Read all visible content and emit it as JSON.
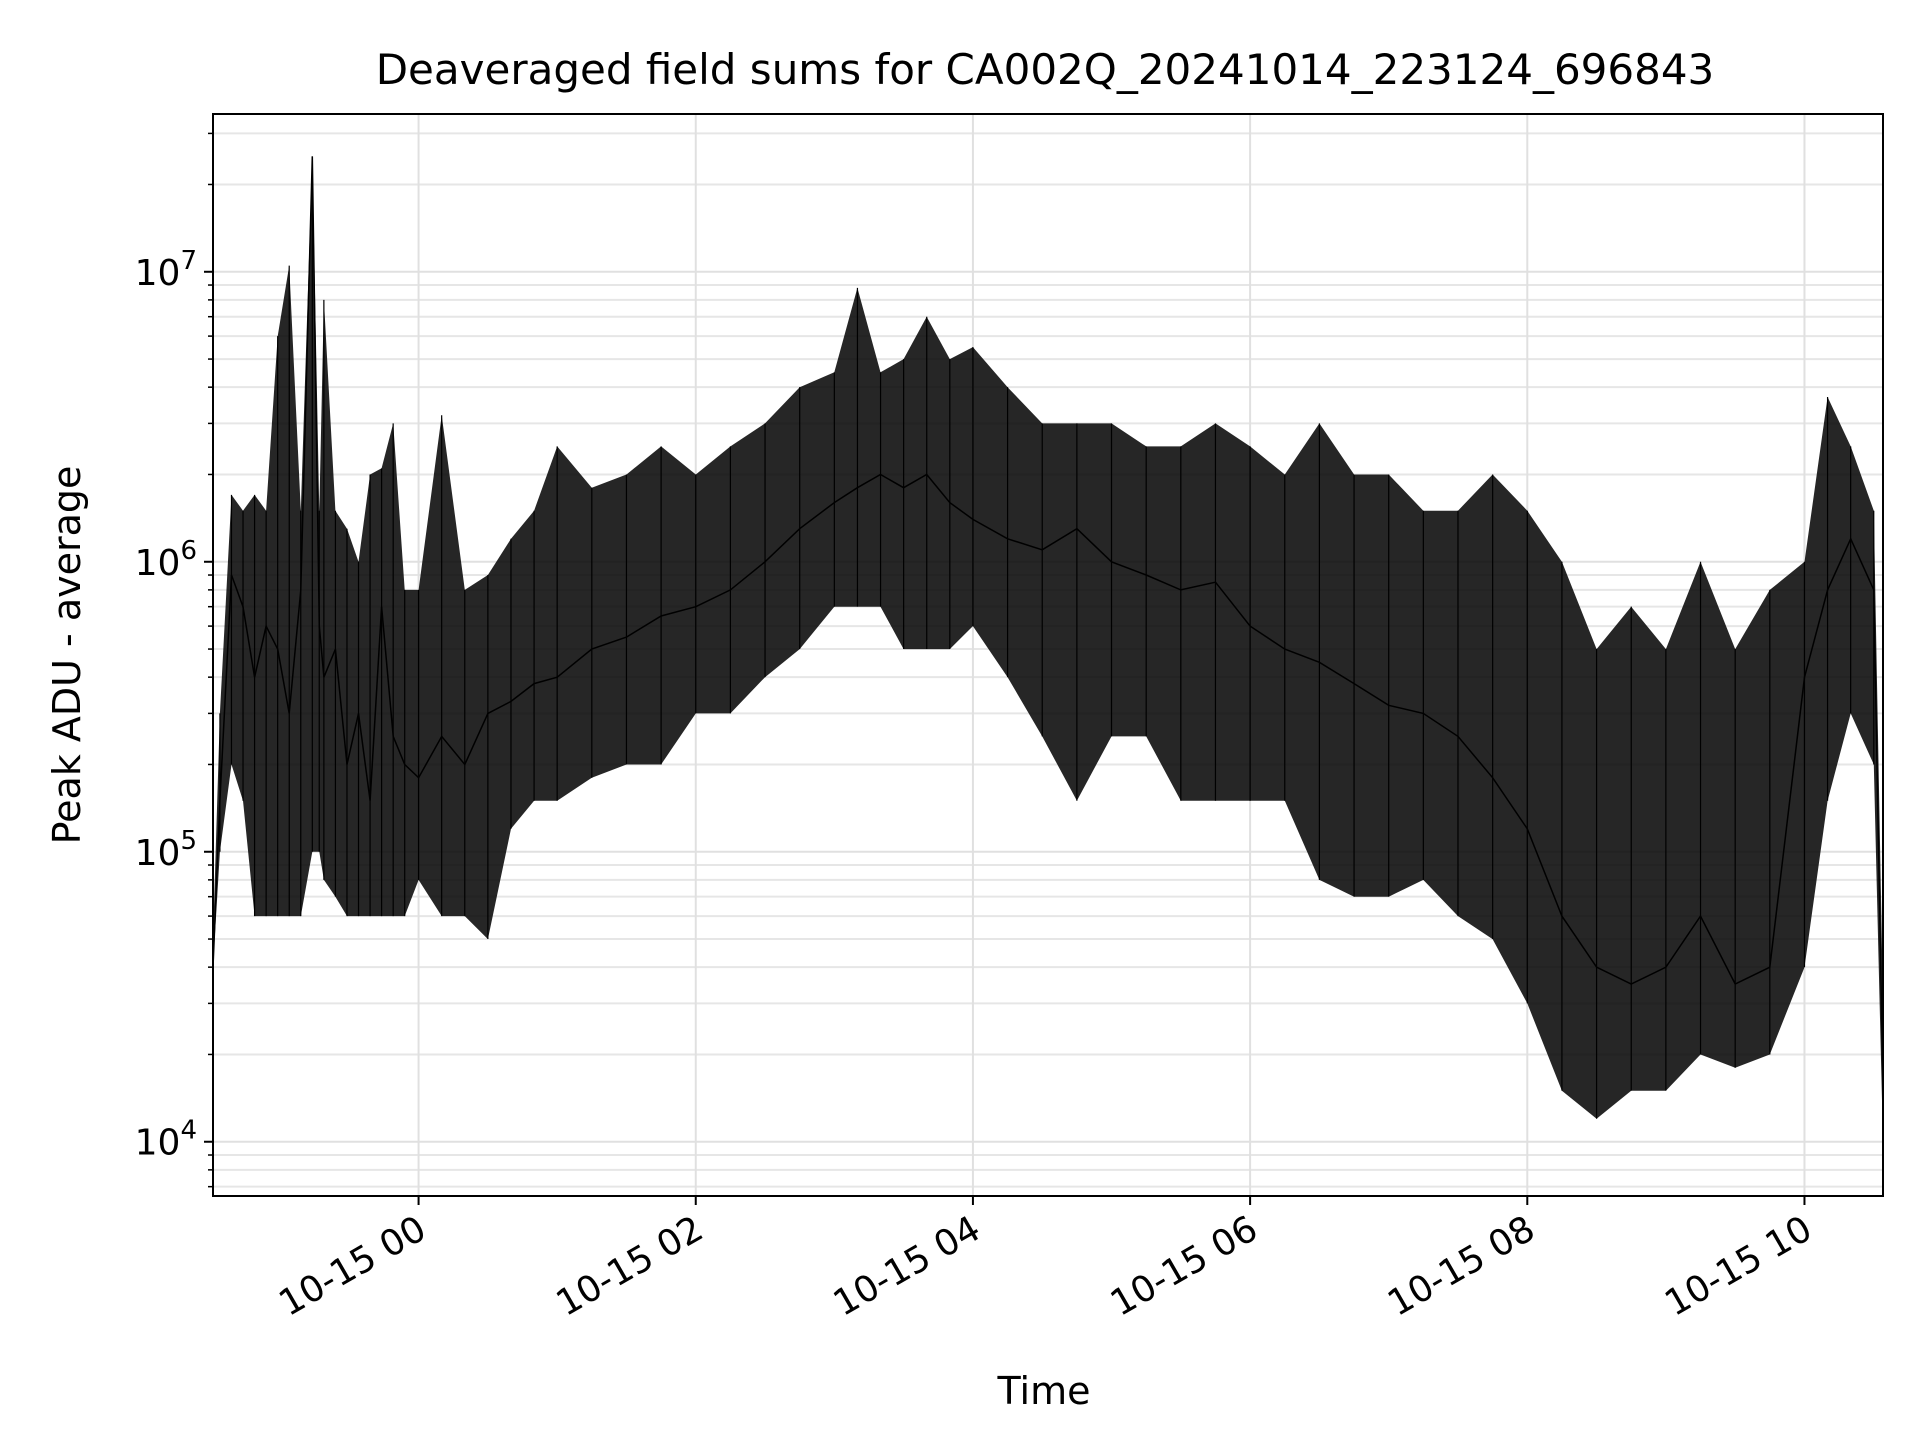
{
  "chart_data": {
    "type": "line",
    "title": "Deaveraged field sums for CA002Q_20241014_223124_696843",
    "xlabel": "Time",
    "ylabel": "Peak ADU - average",
    "yscale": "log",
    "xlim": [
      "2024-10-14 22:31",
      "2024-10-15 10:34"
    ],
    "ylim": [
      6500,
      35000000
    ],
    "grid": true,
    "line_color": "#000000",
    "x_ticks": [
      {
        "x": "2024-10-15 00:00",
        "label": "10-15 00"
      },
      {
        "x": "2024-10-15 02:00",
        "label": "10-15 02"
      },
      {
        "x": "2024-10-15 04:00",
        "label": "10-15 04"
      },
      {
        "x": "2024-10-15 06:00",
        "label": "10-15 06"
      },
      {
        "x": "2024-10-15 08:00",
        "label": "10-15 08"
      },
      {
        "x": "2024-10-15 10:00",
        "label": "10-15 10"
      }
    ],
    "y_ticks": [
      {
        "value": 10000,
        "base": "10",
        "exp": "4"
      },
      {
        "value": 100000,
        "base": "10",
        "exp": "5"
      },
      {
        "value": 1000000,
        "base": "10",
        "exp": "6"
      },
      {
        "value": 10000000,
        "base": "10",
        "exp": "7"
      }
    ],
    "series": [
      {
        "x": [
          "2024-10-14 22:31",
          "2024-10-14 22:34",
          "2024-10-14 22:39",
          "2024-10-14 22:44",
          "2024-10-14 22:49",
          "2024-10-14 22:54",
          "2024-10-14 22:59",
          "2024-10-14 23:04",
          "2024-10-14 23:09",
          "2024-10-14 23:14",
          "2024-10-14 23:17",
          "2024-10-14 23:19",
          "2024-10-14 23:24",
          "2024-10-14 23:29",
          "2024-10-14 23:34",
          "2024-10-14 23:39",
          "2024-10-14 23:44",
          "2024-10-14 23:49",
          "2024-10-14 23:54",
          "2024-10-15 00:00",
          "2024-10-15 00:10",
          "2024-10-15 00:20",
          "2024-10-15 00:30",
          "2024-10-15 00:40",
          "2024-10-15 00:50",
          "2024-10-15 01:00",
          "2024-10-15 01:15",
          "2024-10-15 01:30",
          "2024-10-15 01:45",
          "2024-10-15 02:00",
          "2024-10-15 02:15",
          "2024-10-15 02:30",
          "2024-10-15 02:45",
          "2024-10-15 03:00",
          "2024-10-15 03:10",
          "2024-10-15 03:20",
          "2024-10-15 03:30",
          "2024-10-15 03:40",
          "2024-10-15 03:50",
          "2024-10-15 04:00",
          "2024-10-15 04:15",
          "2024-10-15 04:30",
          "2024-10-15 04:45",
          "2024-10-15 05:00",
          "2024-10-15 05:15",
          "2024-10-15 05:30",
          "2024-10-15 05:45",
          "2024-10-15 06:00",
          "2024-10-15 06:15",
          "2024-10-15 06:30",
          "2024-10-15 06:45",
          "2024-10-15 07:00",
          "2024-10-15 07:15",
          "2024-10-15 07:30",
          "2024-10-15 07:45",
          "2024-10-15 08:00",
          "2024-10-15 08:15",
          "2024-10-15 08:30",
          "2024-10-15 08:45",
          "2024-10-15 09:00",
          "2024-10-15 09:15",
          "2024-10-15 09:30",
          "2024-10-15 09:45",
          "2024-10-15 10:00",
          "2024-10-15 10:10",
          "2024-10-15 10:20",
          "2024-10-15 10:30",
          "2024-10-15 10:34"
        ],
        "y": [
          40000,
          150000,
          900000,
          700000,
          400000,
          600000,
          500000,
          300000,
          800000,
          25000000,
          600000,
          400000,
          500000,
          200000,
          300000,
          150000,
          700000,
          250000,
          200000,
          180000,
          250000,
          200000,
          300000,
          330000,
          380000,
          400000,
          500000,
          550000,
          650000,
          700000,
          800000,
          1000000,
          1300000,
          1600000,
          1800000,
          2000000,
          1800000,
          2000000,
          1600000,
          1400000,
          1200000,
          1100000,
          1300000,
          1000000,
          900000,
          800000,
          850000,
          600000,
          500000,
          450000,
          380000,
          320000,
          300000,
          250000,
          180000,
          120000,
          60000,
          40000,
          35000,
          40000,
          60000,
          35000,
          40000,
          400000,
          800000,
          1200000,
          800000,
          15000
        ],
        "min": [
          40000,
          100000,
          200000,
          150000,
          60000,
          60000,
          60000,
          60000,
          60000,
          100000,
          100000,
          80000,
          70000,
          60000,
          60000,
          60000,
          60000,
          60000,
          60000,
          80000,
          60000,
          60000,
          50000,
          120000,
          150000,
          150000,
          180000,
          200000,
          200000,
          300000,
          300000,
          400000,
          500000,
          700000,
          700000,
          700000,
          500000,
          500000,
          500000,
          600000,
          400000,
          250000,
          150000,
          250000,
          250000,
          150000,
          150000,
          150000,
          150000,
          80000,
          70000,
          70000,
          80000,
          60000,
          50000,
          30000,
          15000,
          12000,
          15000,
          15000,
          20000,
          18000,
          20000,
          40000,
          150000,
          300000,
          200000,
          10000
        ],
        "max": [
          50000,
          300000,
          1700000,
          1500000,
          1700000,
          1500000,
          6000000,
          10500000,
          1500000,
          25000000,
          1500000,
          8000000,
          1500000,
          1300000,
          1000000,
          2000000,
          2100000,
          3000000,
          800000,
          800000,
          3200000,
          800000,
          900000,
          1200000,
          1500000,
          2500000,
          1800000,
          2000000,
          2500000,
          2000000,
          2500000,
          3000000,
          4000000,
          4500000,
          8800000,
          4500000,
          5000000,
          7000000,
          5000000,
          5500000,
          4000000,
          3000000,
          3000000,
          3000000,
          2500000,
          2500000,
          3000000,
          2500000,
          2000000,
          3000000,
          2000000,
          2000000,
          1500000,
          1500000,
          2000000,
          1500000,
          1000000,
          500000,
          700000,
          500000,
          1000000,
          500000,
          800000,
          1000000,
          3700000,
          2500000,
          1500000,
          30000
        ]
      }
    ]
  }
}
